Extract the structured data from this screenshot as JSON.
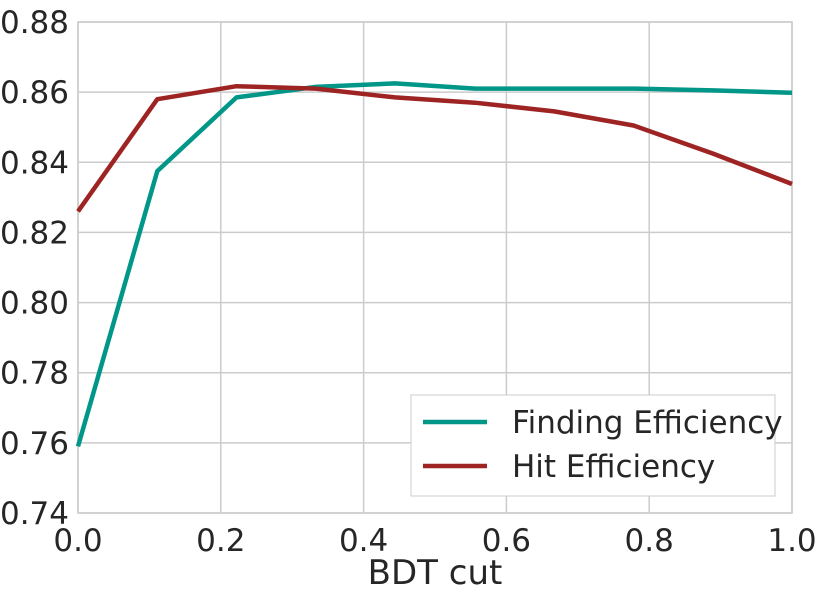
{
  "chart_data": {
    "type": "line",
    "title": "",
    "xlabel": "BDT cut",
    "ylabel": "",
    "xlim": [
      0.0,
      1.0
    ],
    "ylim": [
      0.74,
      0.88
    ],
    "xticks": [
      "0.0",
      "0.2",
      "0.4",
      "0.6",
      "0.8",
      "1.0"
    ],
    "yticks": [
      "0.74",
      "0.76",
      "0.78",
      "0.80",
      "0.82",
      "0.84",
      "0.86",
      "0.88"
    ],
    "grid": true,
    "legend_position": "bottom-right",
    "series": [
      {
        "name": "Finding Efficiency",
        "color": "#009688",
        "x": [
          0.0,
          0.111,
          0.222,
          0.333,
          0.444,
          0.556,
          0.667,
          0.778,
          0.889,
          1.0
        ],
        "y": [
          0.759,
          0.8375,
          0.8585,
          0.8615,
          0.8625,
          0.861,
          0.861,
          0.861,
          0.8605,
          0.8598
        ]
      },
      {
        "name": "Hit Efficiency",
        "color": "#9e2424",
        "x": [
          0.0,
          0.111,
          0.222,
          0.333,
          0.444,
          0.556,
          0.667,
          0.778,
          0.889,
          1.0
        ],
        "y": [
          0.826,
          0.858,
          0.8617,
          0.861,
          0.8585,
          0.857,
          0.8545,
          0.8505,
          0.8425,
          0.8338
        ]
      }
    ]
  }
}
